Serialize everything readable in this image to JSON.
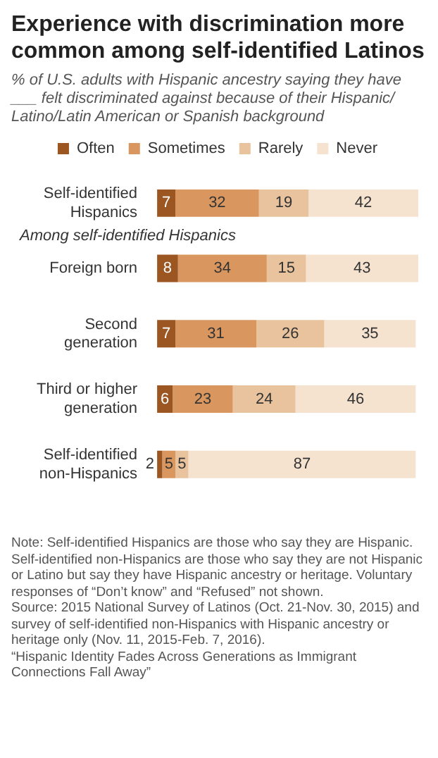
{
  "chart_data": {
    "type": "bar",
    "orientation": "horizontal",
    "stacked": true,
    "title": "Experience with discrimination more common among self-identified Latinos",
    "subtitle": "% of U.S. adults with Hispanic ancestry saying they have ___ felt discriminated against because of their Hispanic/ Latino/Latin American or Spanish background",
    "categories": [
      "Self-identified Hispanics",
      "Foreign born",
      "Second generation",
      "Third or higher generation",
      "Self-identified non-Hispanics"
    ],
    "series": [
      {
        "name": "Often",
        "color": "#9b5622",
        "values": [
          7,
          8,
          7,
          6,
          2
        ]
      },
      {
        "name": "Sometimes",
        "color": "#d9975f",
        "values": [
          32,
          34,
          31,
          23,
          5
        ]
      },
      {
        "name": "Rarely",
        "color": "#e8c39d",
        "values": [
          19,
          15,
          26,
          24,
          5
        ]
      },
      {
        "name": "Never",
        "color": "#f5e3d0",
        "values": [
          42,
          43,
          35,
          46,
          87
        ]
      }
    ],
    "xlim": [
      0,
      100
    ],
    "tick_labels": "y",
    "legend": "top",
    "data_labels": true,
    "grid": false,
    "annotations": [
      "Among self-identified Hispanics",
      "Note: Self-identified Hispanics are those who say they are Hispanic. Self-identified non-Hispanics are those who say they are not Hispanic or Latino but say they have Hispanic ancestry or heritage. Voluntary responses of “Don’t know” and “Refused” not shown.",
      "Source: 2015 National Survey of Latinos (Oct. 21-Nov. 30, 2015) and survey of self-identified non-Hispanics with Hispanic ancestry or heritage only (Nov. 11, 2015-Feb. 7, 2016).",
      "“Hispanic Identity Fades Across Generations as Immigrant Connections Fall Away”"
    ]
  }
}
